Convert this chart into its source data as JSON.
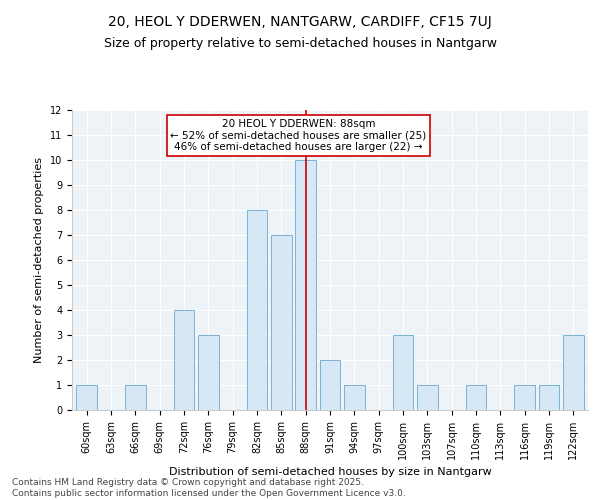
{
  "title": "20, HEOL Y DDERWEN, NANTGARW, CARDIFF, CF15 7UJ",
  "subtitle": "Size of property relative to semi-detached houses in Nantgarw",
  "xlabel": "Distribution of semi-detached houses by size in Nantgarw",
  "ylabel": "Number of semi-detached properties",
  "categories": [
    "60sqm",
    "63sqm",
    "66sqm",
    "69sqm",
    "72sqm",
    "76sqm",
    "79sqm",
    "82sqm",
    "85sqm",
    "88sqm",
    "91sqm",
    "94sqm",
    "97sqm",
    "100sqm",
    "103sqm",
    "107sqm",
    "110sqm",
    "113sqm",
    "116sqm",
    "119sqm",
    "122sqm"
  ],
  "values": [
    1,
    0,
    1,
    0,
    4,
    3,
    0,
    8,
    7,
    10,
    2,
    1,
    0,
    3,
    1,
    0,
    1,
    0,
    1,
    1,
    3
  ],
  "bar_color": "#d6e8f5",
  "bar_edge_color": "#7ab3d4",
  "highlight_line_color": "#cc0000",
  "vline_index": 9,
  "annotation_title": "20 HEOL Y DDERWEN: 88sqm",
  "annotation_line1": "← 52% of semi-detached houses are smaller (25)",
  "annotation_line2": "46% of semi-detached houses are larger (22) →",
  "annotation_box_color": "#ffffff",
  "annotation_box_edge": "#cc0000",
  "ylim": [
    0,
    12
  ],
  "yticks": [
    0,
    1,
    2,
    3,
    4,
    5,
    6,
    7,
    8,
    9,
    10,
    11,
    12
  ],
  "footer": "Contains HM Land Registry data © Crown copyright and database right 2025.\nContains public sector information licensed under the Open Government Licence v3.0.",
  "bg_color": "#ffffff",
  "plot_bg_color": "#eef3f8",
  "title_fontsize": 10,
  "subtitle_fontsize": 9,
  "axis_label_fontsize": 8,
  "tick_fontsize": 7,
  "footer_fontsize": 6.5,
  "annotation_fontsize": 7.5
}
